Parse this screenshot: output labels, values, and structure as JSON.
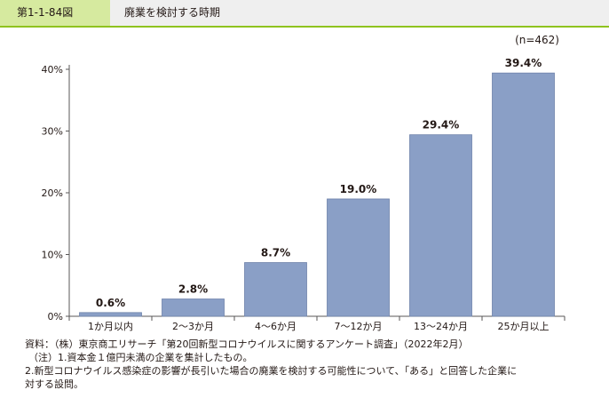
{
  "header": {
    "figure_number": "第1-1-84図",
    "title": "廃業を検討する時期"
  },
  "chart_data": {
    "type": "bar",
    "sample_note": "(n=462)",
    "categories": [
      "1か月以内",
      "2～3か月",
      "4～6か月",
      "7～12か月",
      "13～24か月",
      "25か月以上"
    ],
    "values": [
      0.6,
      2.8,
      8.7,
      19.0,
      29.4,
      39.4
    ],
    "value_labels": [
      "0.6%",
      "2.8%",
      "8.7%",
      "19.0%",
      "29.4%",
      "39.4%"
    ],
    "ylim": [
      0,
      40
    ],
    "yticks": [
      0,
      10,
      20,
      30,
      40
    ],
    "ytick_labels": [
      "0%",
      "10%",
      "20%",
      "30%",
      "40%"
    ],
    "bar_color": "#8a9fc6",
    "bar_edge_color": "#6e82aa",
    "grid": false
  },
  "notes": {
    "source": "資料：（株）東京商工リサーチ「第20回新型コロナウイルスに関するアンケート調査」（2022年2月）",
    "note1": "（注）1.資本金１億円未満の企業を集計したもの。",
    "note2_line1": "2.新型コロナウイルス感染症の影響が長引いた場合の廃業を検討する可能性について、「ある」と回答した企業に",
    "note2_line2": "対する設問。"
  },
  "colors": {
    "header_bg": "#efefef",
    "label_bg": "#d6ea9f",
    "accent_line": "#8fc31f"
  }
}
